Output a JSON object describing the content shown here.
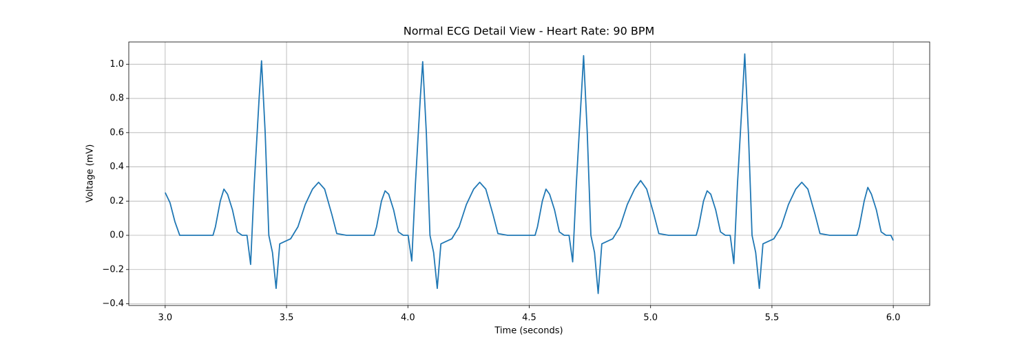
{
  "chart_data": {
    "type": "line",
    "title": "Normal ECG Detail View - Heart Rate: 90 BPM",
    "x_label": "Time (seconds)",
    "y_label": "Voltage (mV)",
    "xlim": [
      2.85,
      6.15
    ],
    "ylim": [
      -0.41,
      1.13
    ],
    "grid": true,
    "xticks": [
      {
        "value": 3,
        "label": "3.0"
      },
      {
        "value": 3.5,
        "label": "3.5"
      },
      {
        "value": 4,
        "label": "4.0"
      },
      {
        "value": 4.5,
        "label": "4.5"
      },
      {
        "value": 5,
        "label": "5.0"
      },
      {
        "value": 5.5,
        "label": "5.5"
      },
      {
        "value": 6,
        "label": "6.0"
      }
    ],
    "yticks": [
      {
        "value": -0.4,
        "label": "−0.4"
      },
      {
        "value": -0.2,
        "label": "−0.2"
      },
      {
        "value": 0,
        "label": "0.0"
      },
      {
        "value": 0.2,
        "label": "0.2"
      },
      {
        "value": 0.4,
        "label": "0.4"
      },
      {
        "value": 0.6,
        "label": "0.6"
      },
      {
        "value": 0.8,
        "label": "0.8"
      },
      {
        "value": 1,
        "label": "1.0"
      }
    ],
    "x": [
      3.0,
      3.02,
      3.04,
      3.06,
      3.1,
      3.147,
      3.197,
      3.207,
      3.227,
      3.242,
      3.257,
      3.277,
      3.297,
      3.317,
      3.337,
      3.352,
      3.367,
      3.387,
      3.397,
      3.412,
      3.427,
      3.442,
      3.457,
      3.472,
      3.487,
      3.517,
      3.547,
      3.577,
      3.607,
      3.632,
      3.657,
      3.687,
      3.707,
      3.747,
      3.811,
      3.861,
      3.871,
      3.891,
      3.906,
      3.921,
      3.941,
      3.961,
      3.981,
      4.001,
      4.016,
      4.031,
      4.051,
      4.061,
      4.076,
      4.091,
      4.106,
      4.121,
      4.136,
      4.151,
      4.181,
      4.211,
      4.241,
      4.271,
      4.296,
      4.321,
      4.351,
      4.371,
      4.411,
      4.474,
      4.524,
      4.534,
      4.554,
      4.569,
      4.584,
      4.604,
      4.624,
      4.644,
      4.664,
      4.679,
      4.694,
      4.714,
      4.724,
      4.739,
      4.754,
      4.769,
      4.784,
      4.799,
      4.814,
      4.844,
      4.874,
      4.904,
      4.934,
      4.959,
      4.984,
      5.014,
      5.034,
      5.074,
      5.138,
      5.188,
      5.198,
      5.218,
      5.233,
      5.248,
      5.268,
      5.288,
      5.308,
      5.328,
      5.343,
      5.358,
      5.378,
      5.388,
      5.403,
      5.418,
      5.433,
      5.448,
      5.463,
      5.478,
      5.508,
      5.538,
      5.568,
      5.598,
      5.623,
      5.648,
      5.678,
      5.698,
      5.738,
      5.8,
      5.85,
      5.86,
      5.88,
      5.895,
      5.91,
      5.93,
      5.95,
      5.97,
      5.99,
      6.0
    ],
    "series": [
      {
        "color": "#1f77b4",
        "values": [
          0.25,
          0.19,
          0.08,
          0.0,
          0.0,
          0,
          0,
          0.05,
          0.2,
          0.27,
          0.24,
          0.15,
          0.02,
          0,
          0,
          -0.17,
          0.3,
          0.8,
          1.02,
          0.6,
          0,
          -0.1,
          -0.31,
          -0.05,
          -0.04,
          -0.02,
          0.05,
          0.18,
          0.27,
          0.31,
          0.27,
          0.12,
          0.01,
          0,
          0,
          0,
          0.05,
          0.2,
          0.26,
          0.24,
          0.15,
          0.02,
          0,
          0,
          -0.15,
          0.3,
          0.8,
          1.015,
          0.6,
          0,
          -0.1,
          -0.31,
          -0.05,
          -0.04,
          -0.02,
          0.05,
          0.18,
          0.27,
          0.31,
          0.27,
          0.12,
          0.01,
          0,
          0,
          0,
          0.05,
          0.2,
          0.27,
          0.24,
          0.15,
          0.02,
          0,
          0,
          -0.155,
          0.3,
          0.8,
          1.05,
          0.6,
          0,
          -0.1,
          -0.34,
          -0.05,
          -0.04,
          -0.02,
          0.05,
          0.18,
          0.27,
          0.32,
          0.27,
          0.12,
          0.01,
          0,
          0,
          0,
          0.05,
          0.2,
          0.26,
          0.24,
          0.15,
          0.02,
          0,
          0,
          -0.165,
          0.3,
          0.8,
          1.06,
          0.6,
          0,
          -0.1,
          -0.31,
          -0.05,
          -0.04,
          -0.02,
          0.05,
          0.18,
          0.27,
          0.31,
          0.27,
          0.12,
          0.01,
          0,
          0,
          0,
          0.05,
          0.2,
          0.28,
          0.24,
          0.15,
          0.02,
          0,
          0,
          -0.03
        ]
      }
    ]
  }
}
